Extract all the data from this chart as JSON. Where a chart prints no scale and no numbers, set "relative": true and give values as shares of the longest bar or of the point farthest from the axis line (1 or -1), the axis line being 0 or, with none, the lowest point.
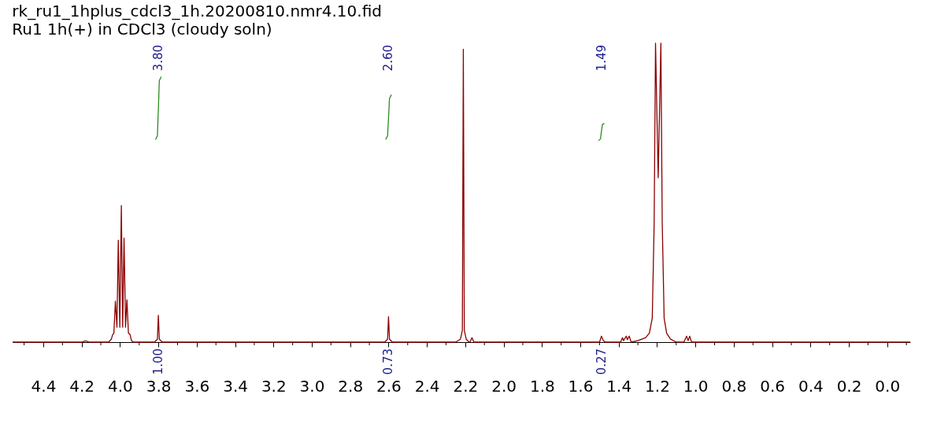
{
  "chart_data": {
    "type": "line",
    "title": "rk_ru1_1hplus_cdcl3_1h.20200810.nmr4.10.fid",
    "subtitle": "Ru1 1h(+) in CDCl3 (cloudy soln)",
    "relative": true,
    "grid": false,
    "legend": false,
    "marker": "none",
    "line_style": "solid",
    "xlim": [
      4.56,
      -0.12
    ],
    "xticks": [
      {
        "value": 4.4,
        "label": "4.4"
      },
      {
        "value": 4.2,
        "label": "4.2"
      },
      {
        "value": 4.0,
        "label": "4.0"
      },
      {
        "value": 3.8,
        "label": "3.8"
      },
      {
        "value": 3.6,
        "label": "3.6"
      },
      {
        "value": 3.4,
        "label": "3.4"
      },
      {
        "value": 3.2,
        "label": "3.2"
      },
      {
        "value": 3.0,
        "label": "3.0"
      },
      {
        "value": 2.8,
        "label": "2.8"
      },
      {
        "value": 2.6,
        "label": "2.6"
      },
      {
        "value": 2.4,
        "label": "2.4"
      },
      {
        "value": 2.2,
        "label": "2.2"
      },
      {
        "value": 2.0,
        "label": "2.0"
      },
      {
        "value": 1.8,
        "label": "1.8"
      },
      {
        "value": 1.6,
        "label": "1.6"
      },
      {
        "value": 1.4,
        "label": "1.4"
      },
      {
        "value": 1.2,
        "label": "1.2"
      },
      {
        "value": 1.0,
        "label": "1.0"
      },
      {
        "value": 0.8,
        "label": "0.8"
      },
      {
        "value": 0.6,
        "label": "0.6"
      },
      {
        "value": 0.4,
        "label": "0.4"
      },
      {
        "value": 0.2,
        "label": "0.2"
      },
      {
        "value": 0,
        "label": "0.0"
      },
      {
        "value": 4.5,
        "label": null
      },
      {
        "value": 4.3,
        "label": null
      },
      {
        "value": 4.1,
        "label": null
      },
      {
        "value": 3.9,
        "label": null
      },
      {
        "value": 3.7,
        "label": null
      },
      {
        "value": 3.5,
        "label": null
      },
      {
        "value": 3.3,
        "label": null
      },
      {
        "value": 3.1,
        "label": null
      },
      {
        "value": 2.9,
        "label": null
      },
      {
        "value": 2.7,
        "label": null
      },
      {
        "value": 2.5,
        "label": null
      },
      {
        "value": 2.3,
        "label": null
      },
      {
        "value": 2.1,
        "label": null
      },
      {
        "value": 1.9,
        "label": null
      },
      {
        "value": 1.7,
        "label": null
      },
      {
        "value": 1.5,
        "label": null
      },
      {
        "value": 1.3,
        "label": null
      },
      {
        "value": 1.1,
        "label": null
      },
      {
        "value": 0.9,
        "label": null
      },
      {
        "value": 0.7,
        "label": null
      },
      {
        "value": 0.5,
        "label": null
      },
      {
        "value": 0.3,
        "label": null
      },
      {
        "value": 0.1,
        "label": null
      },
      {
        "value": -0.1,
        "label": null
      }
    ],
    "series": [
      {
        "color": "#8b0000",
        "x": [
          4.56,
          4.2,
          4.18,
          4.16,
          4.06,
          4.045,
          4.039,
          4.032,
          4.024,
          4.016,
          4.009,
          4.001,
          3.993,
          3.986,
          3.979,
          3.971,
          3.964,
          3.956,
          3.948,
          3.94,
          3.93,
          3.82,
          3.805,
          3.8,
          3.795,
          3.78,
          2.62,
          2.605,
          2.6,
          2.595,
          2.58,
          2.25,
          2.225,
          2.215,
          2.21,
          2.205,
          2.195,
          2.18,
          2.175,
          2.165,
          2.155,
          1.5,
          1.49,
          1.48,
          1.47,
          1.39,
          1.38,
          1.375,
          1.36,
          1.355,
          1.345,
          1.335,
          1.3,
          1.26,
          1.24,
          1.225,
          1.215,
          1.208,
          1.194,
          1.18,
          1.173,
          1.163,
          1.15,
          1.13,
          1.1,
          1.06,
          1.046,
          1.038,
          1.03,
          1.02,
          -0.12
        ],
        "values": [
          0,
          0,
          0.004,
          0,
          0,
          0.01,
          0.024,
          0.03,
          0.137,
          0.05,
          0.341,
          0.05,
          0.457,
          0.05,
          0.348,
          0.05,
          0.142,
          0.03,
          0.026,
          0.005,
          0,
          0,
          0.01,
          0.09,
          0.01,
          0,
          0,
          0.01,
          0.085,
          0.01,
          0,
          0,
          0.01,
          0.04,
          0.98,
          0.04,
          0.01,
          0,
          0,
          0.015,
          0,
          0,
          0.02,
          0.005,
          0,
          0,
          0.015,
          0.005,
          0.02,
          0.008,
          0.02,
          0,
          0.005,
          0.015,
          0.03,
          0.08,
          0.4,
          1,
          0.55,
          1,
          0.4,
          0.08,
          0.03,
          0.01,
          0,
          0,
          0.02,
          0.005,
          0.02,
          0,
          0
        ]
      },
      {
        "color": "#2e8b22",
        "x": [
          3.815,
          3.805,
          3.8,
          3.795,
          3.785
        ],
        "values": [
          0.678,
          0.69,
          0.78,
          0.875,
          0.888
        ]
      },
      {
        "color": "#2e8b22",
        "x": [
          2.615,
          2.605,
          2.6,
          2.595,
          2.585
        ],
        "values": [
          0.678,
          0.69,
          0.75,
          0.815,
          0.828
        ]
      },
      {
        "color": "#2e8b22",
        "x": [
          1.505,
          1.495,
          1.49,
          1.485,
          1.475
        ],
        "values": [
          0.674,
          0.68,
          0.705,
          0.728,
          0.732
        ]
      }
    ],
    "annotations": [
      "3.80",
      "2.60",
      "1.49",
      "1.00",
      "0.73",
      "0.27"
    ]
  }
}
